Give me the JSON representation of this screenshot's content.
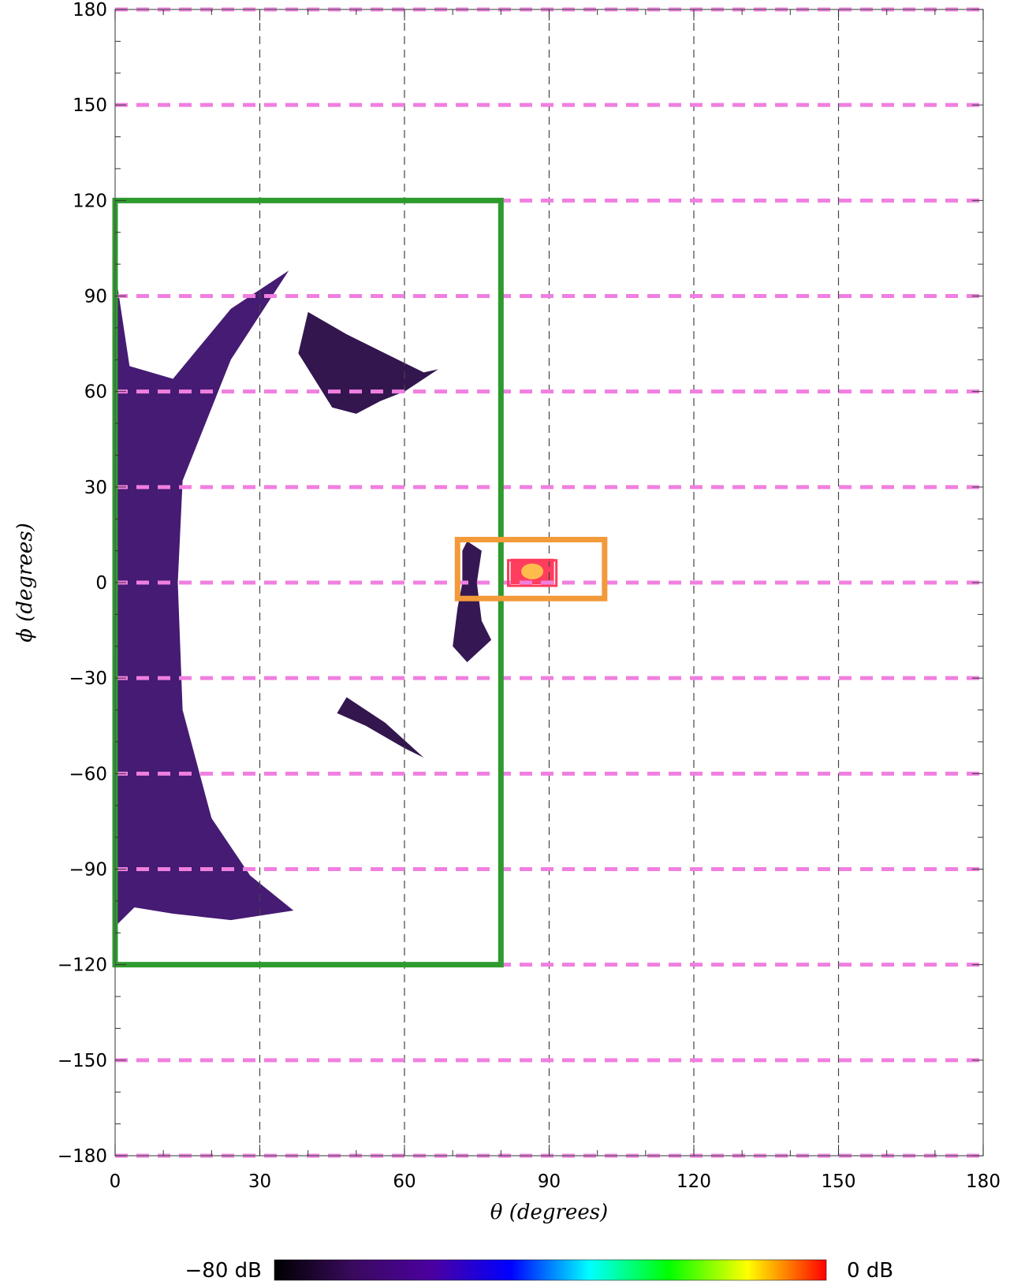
{
  "chart_data": {
    "type": "heatmap",
    "xlabel": "θ (degrees)",
    "ylabel": "ϕ (degrees)",
    "xlim": [
      0,
      180
    ],
    "ylim": [
      -180,
      180
    ],
    "xticks": [
      0,
      30,
      60,
      90,
      120,
      150,
      180
    ],
    "yticks": [
      180,
      150,
      120,
      90,
      60,
      30,
      0,
      -30,
      -60,
      -90,
      -120,
      -150,
      -180
    ],
    "grid": {
      "vertical": {
        "values": [
          30,
          60,
          90,
          120,
          150
        ],
        "style": "dashed",
        "color": "#444444"
      },
      "horizontal": {
        "values": [
          180,
          150,
          120,
          90,
          60,
          30,
          0,
          -30,
          -60,
          -90,
          -120,
          -150,
          -180
        ],
        "style": "dashed",
        "color": "#f07fe0"
      }
    },
    "colorbar": {
      "min_label": "−80 dB",
      "max_label": "0 dB",
      "colors": [
        "#000000",
        "#3a0a5e",
        "#4b00a0",
        "#0000ff",
        "#00ffff",
        "#00ff00",
        "#ffff00",
        "#ff0000"
      ]
    },
    "regions": [
      {
        "shape": "rectangle",
        "x": [
          0,
          80
        ],
        "y": [
          -120,
          120
        ],
        "color": "#2e9b2e"
      },
      {
        "shape": "rectangle",
        "x": [
          71,
          101.5
        ],
        "y": [
          -5,
          13.5
        ],
        "color": "#f39a3a"
      },
      {
        "shape": "rectangle",
        "x": [
          81.5,
          91.5
        ],
        "y": [
          -1,
          7
        ],
        "color": "#ff3a5a"
      }
    ],
    "features": [
      {
        "shape": "crescent",
        "points": [
          [
            0,
            98
          ],
          [
            3,
            68
          ],
          [
            12,
            64
          ],
          [
            24,
            86
          ],
          [
            36,
            98
          ],
          [
            24,
            70
          ],
          [
            14,
            32
          ],
          [
            13,
            0
          ],
          [
            14,
            -40
          ],
          [
            20,
            -74
          ],
          [
            28,
            -92
          ],
          [
            37,
            -103
          ],
          [
            24,
            -106
          ],
          [
            12,
            -104
          ],
          [
            4,
            -102
          ],
          [
            0,
            -108
          ]
        ],
        "color": "#3b0f6b"
      },
      {
        "shape": "streak",
        "points": [
          [
            40,
            85
          ],
          [
            48,
            78
          ],
          [
            56,
            72
          ],
          [
            64,
            66
          ],
          [
            67,
            67
          ],
          [
            60,
            60
          ],
          [
            55,
            57
          ],
          [
            50,
            53
          ],
          [
            45,
            55
          ],
          [
            38,
            72
          ]
        ],
        "color": "#280a45"
      },
      {
        "shape": "streak",
        "points": [
          [
            48,
            -36
          ],
          [
            56,
            -44
          ],
          [
            64,
            -55
          ],
          [
            60,
            -52
          ],
          [
            52,
            -45
          ],
          [
            46,
            -41
          ]
        ],
        "color": "#280a45"
      },
      {
        "shape": "crescent",
        "points": [
          [
            73,
            13
          ],
          [
            76,
            10
          ],
          [
            75,
            0
          ],
          [
            76,
            -12
          ],
          [
            78,
            -18
          ],
          [
            73,
            -25
          ],
          [
            70,
            -20
          ],
          [
            71,
            -8
          ],
          [
            72,
            0
          ],
          [
            72,
            10
          ]
        ],
        "color": "#2a0c4a"
      },
      {
        "shape": "blob",
        "points": [
          [
            82,
            7.5
          ],
          [
            91,
            7.5
          ],
          [
            91,
            -0.5
          ],
          [
            82,
            -0.5
          ]
        ],
        "color": "#ff3355",
        "inner_color": "#ffd24a"
      }
    ]
  }
}
